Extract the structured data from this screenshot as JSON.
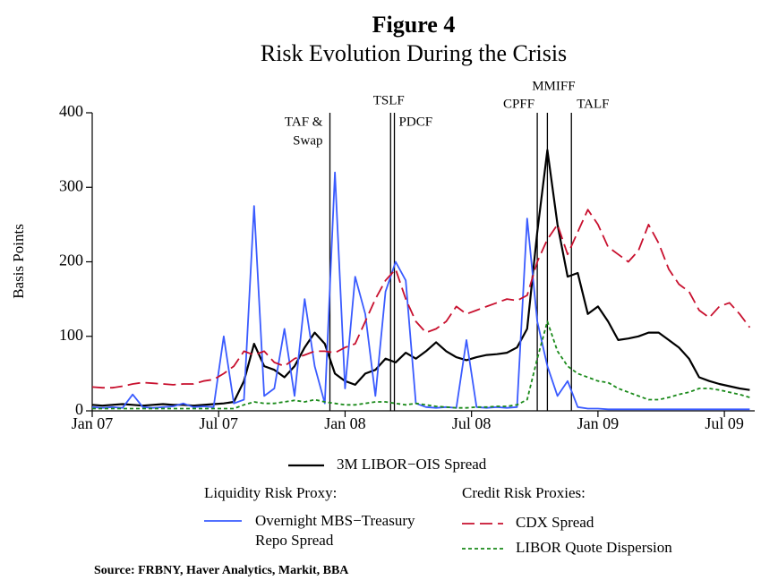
{
  "chart_data": {
    "type": "line",
    "title": "Figure 4",
    "subtitle": "Risk Evolution During the Crisis",
    "ylabel": "Basis Points",
    "source": "Source: FRBNY, Haver Analytics, Markit, BBA",
    "legend_headers": [
      "Liquidity Risk Proxy:",
      "Credit Risk Proxies:"
    ],
    "xlim": [
      2007.0,
      2009.62
    ],
    "xticks": [
      {
        "value": 2007.0,
        "label": "Jan 07"
      },
      {
        "value": 2007.5,
        "label": "Jul 07"
      },
      {
        "value": 2008.0,
        "label": "Jan 08"
      },
      {
        "value": 2008.5,
        "label": "Jul 08"
      },
      {
        "value": 2009.0,
        "label": "Jan 09"
      },
      {
        "value": 2009.5,
        "label": "Jul 09"
      }
    ],
    "ylim": [
      0,
      400
    ],
    "yticks": [
      0,
      100,
      200,
      300,
      400
    ],
    "events": [
      {
        "label": [
          "TAF &",
          "Swap"
        ],
        "x": 2007.94
      },
      {
        "label": [
          "TSLF"
        ],
        "x": 2008.18
      },
      {
        "label": [
          "PDCF"
        ],
        "x": 2008.195
      },
      {
        "label": [
          "CPFF"
        ],
        "x": 2008.76
      },
      {
        "label": [
          "MMIFF"
        ],
        "x": 2008.8
      },
      {
        "label": [
          "TALF"
        ],
        "x": 2008.895
      }
    ],
    "x": [
      2007.0,
      2007.04,
      2007.08,
      2007.12,
      2007.16,
      2007.2,
      2007.24,
      2007.28,
      2007.32,
      2007.36,
      2007.4,
      2007.44,
      2007.48,
      2007.52,
      2007.56,
      2007.6,
      2007.64,
      2007.68,
      2007.72,
      2007.76,
      2007.8,
      2007.84,
      2007.88,
      2007.92,
      2007.96,
      2008.0,
      2008.04,
      2008.08,
      2008.12,
      2008.16,
      2008.2,
      2008.24,
      2008.28,
      2008.32,
      2008.36,
      2008.4,
      2008.44,
      2008.48,
      2008.52,
      2008.56,
      2008.6,
      2008.64,
      2008.68,
      2008.72,
      2008.76,
      2008.8,
      2008.84,
      2008.88,
      2008.92,
      2008.96,
      2009.0,
      2009.04,
      2009.08,
      2009.12,
      2009.16,
      2009.2,
      2009.24,
      2009.28,
      2009.32,
      2009.36,
      2009.4,
      2009.44,
      2009.48,
      2009.52,
      2009.56,
      2009.6
    ],
    "series": [
      {
        "name": "3M LIBOR−OIS Spread",
        "color": "#000000",
        "dash": "none",
        "width": 2.2,
        "values": [
          8,
          7,
          8,
          9,
          8,
          7,
          8,
          9,
          8,
          8,
          7,
          8,
          9,
          10,
          12,
          40,
          90,
          60,
          55,
          45,
          60,
          85,
          105,
          90,
          50,
          40,
          35,
          50,
          55,
          70,
          65,
          78,
          70,
          80,
          92,
          80,
          72,
          68,
          72,
          75,
          76,
          78,
          85,
          110,
          240,
          350,
          250,
          180,
          185,
          130,
          140,
          120,
          95,
          97,
          100,
          105,
          105,
          95,
          85,
          70,
          45,
          40,
          36,
          33,
          30,
          28
        ]
      },
      {
        "name": "Overnight MBS−Treasury Repo Spread",
        "color": "#3a5bff",
        "dash": "none",
        "width": 1.8,
        "values": [
          5,
          4,
          5,
          4,
          22,
          5,
          4,
          5,
          6,
          10,
          5,
          6,
          5,
          100,
          10,
          15,
          275,
          20,
          30,
          110,
          20,
          150,
          60,
          10,
          320,
          30,
          180,
          130,
          20,
          160,
          200,
          175,
          10,
          5,
          4,
          5,
          4,
          95,
          5,
          4,
          5,
          4,
          5,
          258,
          120,
          60,
          20,
          40,
          5,
          3,
          3,
          2,
          2,
          2,
          2,
          2,
          2,
          2,
          2,
          2,
          2,
          2,
          2,
          2,
          2,
          2
        ]
      },
      {
        "name": "CDX Spread",
        "color": "#c8102e",
        "dash": "14 6",
        "width": 1.8,
        "values": [
          32,
          31,
          31,
          33,
          36,
          38,
          37,
          36,
          35,
          36,
          36,
          40,
          42,
          50,
          60,
          80,
          75,
          80,
          65,
          60,
          70,
          75,
          80,
          80,
          78,
          85,
          90,
          120,
          150,
          175,
          190,
          150,
          120,
          105,
          110,
          120,
          140,
          130,
          135,
          140,
          145,
          150,
          148,
          155,
          200,
          230,
          250,
          210,
          240,
          270,
          250,
          220,
          210,
          200,
          215,
          250,
          225,
          190,
          170,
          160,
          135,
          125,
          140,
          145,
          130,
          112
        ]
      },
      {
        "name": "LIBOR Quote Dispersion",
        "color": "#1a8a1a",
        "dash": "4 3",
        "width": 1.8,
        "values": [
          3,
          3,
          3,
          3,
          3,
          3,
          3,
          3,
          3,
          3,
          3,
          3,
          3,
          3,
          3,
          8,
          12,
          10,
          10,
          12,
          14,
          12,
          15,
          12,
          10,
          8,
          8,
          10,
          12,
          12,
          10,
          8,
          10,
          8,
          6,
          5,
          4,
          4,
          5,
          5,
          6,
          6,
          8,
          15,
          70,
          120,
          80,
          60,
          50,
          45,
          40,
          38,
          30,
          25,
          20,
          15,
          15,
          18,
          22,
          25,
          30,
          30,
          28,
          25,
          22,
          18
        ]
      }
    ]
  }
}
